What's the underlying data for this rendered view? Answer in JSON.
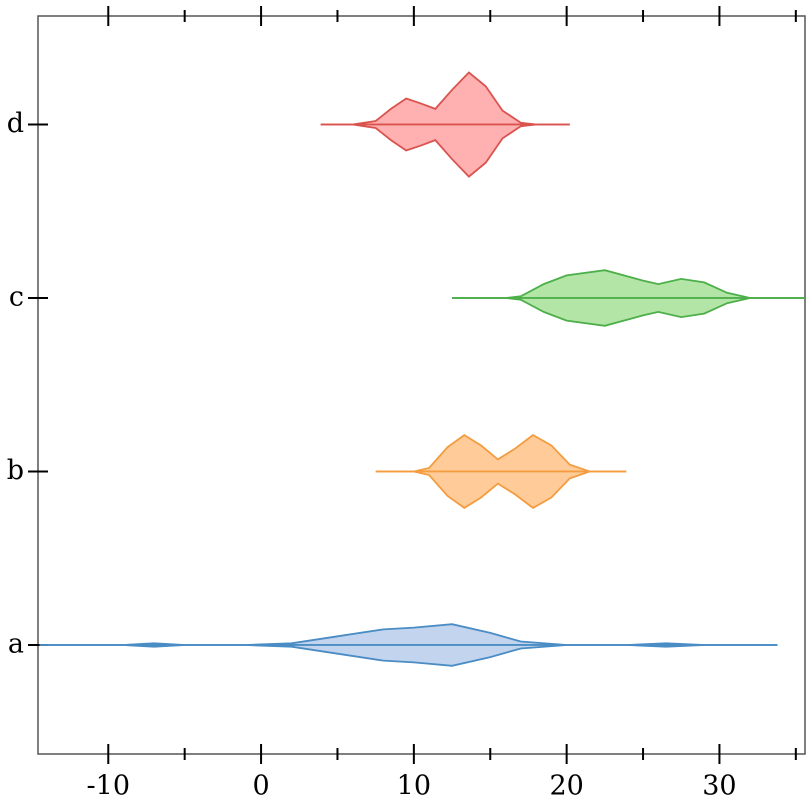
{
  "chart_data": {
    "type": "violin",
    "categories": [
      "a",
      "b",
      "c",
      "d"
    ],
    "series": [
      {
        "color": "#4a8cc4",
        "fill": "#c3d4ee",
        "x": [
          -14.5,
          -9,
          -7,
          -5,
          -1,
          2,
          5,
          8,
          10,
          12.5,
          15,
          17,
          20,
          24,
          26.5,
          29,
          33.8
        ],
        "values": [
          0,
          0,
          0.01,
          0,
          0,
          0.01,
          0.05,
          0.09,
          0.1,
          0.12,
          0.07,
          0.02,
          0,
          0,
          0.01,
          0,
          0
        ]
      },
      {
        "color": "#f39c40",
        "fill": "#ffcc99",
        "x": [
          7.5,
          10,
          11,
          12.2,
          13.3,
          14.4,
          15.5,
          16.6,
          17.8,
          19,
          20.2,
          21.5,
          23.9
        ],
        "values": [
          0,
          0,
          0.02,
          0.14,
          0.21,
          0.15,
          0.07,
          0.13,
          0.21,
          0.15,
          0.04,
          0,
          0
        ]
      },
      {
        "color": "#4daf4a",
        "fill": "#b3e6a6",
        "x": [
          12.5,
          16,
          17,
          18.5,
          20,
          22.5,
          25,
          26,
          27.5,
          29,
          30.5,
          32,
          35.6
        ],
        "values": [
          0,
          0,
          0.01,
          0.08,
          0.13,
          0.16,
          0.1,
          0.08,
          0.11,
          0.09,
          0.03,
          0,
          0
        ]
      },
      {
        "color": "#d9534f",
        "fill": "#ffb0b0",
        "x": [
          3.9,
          6,
          7.5,
          8.5,
          9.5,
          10.5,
          11.4,
          12.5,
          13.6,
          14.7,
          15.8,
          17,
          18,
          20.2
        ],
        "values": [
          0,
          0,
          0.02,
          0.09,
          0.15,
          0.12,
          0.09,
          0.2,
          0.3,
          0.22,
          0.08,
          0.01,
          0,
          0
        ]
      }
    ],
    "xlim": [
      -14.6,
      35.6
    ],
    "xticks": [
      -10,
      0,
      10,
      20,
      30
    ],
    "xminorticks": [
      -5,
      5,
      15,
      25,
      35
    ]
  }
}
